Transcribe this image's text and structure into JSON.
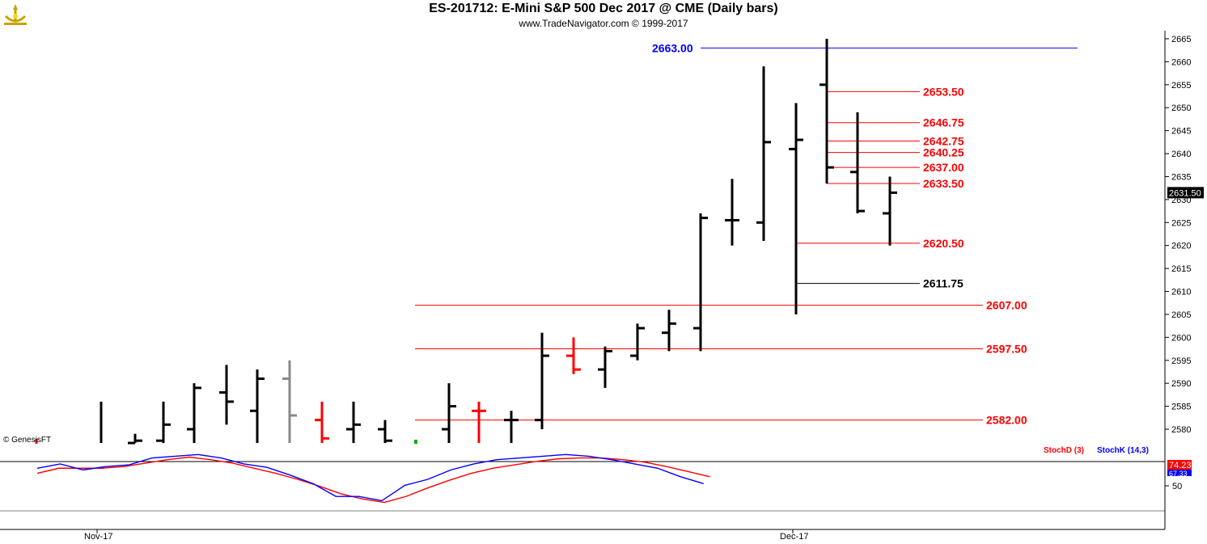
{
  "header": {
    "title": "ES-201712:  E-Mini S&P 500 Dec 2017 @ CME  (Daily bars)",
    "subtitle": "www.TradeNavigator.com © 1999-2017",
    "logo_icon": "ship-wheel-logo-icon"
  },
  "chart_data": [
    {
      "type": "ohlc",
      "instrument": "ES-201712",
      "price_axis": {
        "min": 2578,
        "max": 2666,
        "ticks": [
          2580,
          2585,
          2590,
          2595,
          2600,
          2605,
          2610,
          2615,
          2620,
          2625,
          2630,
          2635,
          2640,
          2645,
          2650,
          2655,
          2660,
          2665
        ]
      },
      "x_labels": [
        "Nov-17",
        "Dec-17"
      ],
      "last_price_label": "2631.50",
      "bars": [
        {
          "o": null,
          "h": 2586,
          "l": 2577,
          "c": null,
          "color": "#000000"
        },
        {
          "o": 2577,
          "h": 2579,
          "l": 2577,
          "c": 2577.5,
          "color": "#000000"
        },
        {
          "o": 2577.5,
          "h": 2586,
          "l": 2577,
          "c": 2581,
          "color": "#000000"
        },
        {
          "o": 2580,
          "h": 2590,
          "l": 2577,
          "c": 2589,
          "color": "#000000"
        },
        {
          "o": 2588,
          "h": 2594,
          "l": 2581,
          "c": 2586,
          "color": "#000000"
        },
        {
          "o": 2584,
          "h": 2593,
          "l": 2577,
          "c": 2591,
          "color": "#000000"
        },
        {
          "o": 2591,
          "h": 2595,
          "l": 2577,
          "c": 2583,
          "color": "#888888"
        },
        {
          "o": 2582,
          "h": 2586,
          "l": 2577,
          "c": 2578,
          "color": "#ff0000"
        },
        {
          "o": 2580,
          "h": 2586,
          "l": 2577,
          "c": 2581,
          "color": "#000000"
        },
        {
          "o": 2580,
          "h": 2582,
          "l": 2577,
          "c": 2577.5,
          "color": "#000000"
        },
        {
          "o": 2580,
          "h": 2590,
          "l": 2577,
          "c": 2585,
          "color": "#000000"
        },
        {
          "o": 2584,
          "h": 2586,
          "l": 2577,
          "c": 2584,
          "color": "#ff0000"
        },
        {
          "o": 2582,
          "h": 2584,
          "l": 2577,
          "c": 2582,
          "color": "#000000"
        },
        {
          "o": 2582,
          "h": 2601,
          "l": 2580,
          "c": 2596,
          "color": "#000000"
        },
        {
          "o": 2596,
          "h": 2600,
          "l": 2592,
          "c": 2593,
          "color": "#ff0000"
        },
        {
          "o": 2593,
          "h": 2598,
          "l": 2589,
          "c": 2597,
          "color": "#000000"
        },
        {
          "o": 2596,
          "h": 2603,
          "l": 2595,
          "c": 2602,
          "color": "#000000"
        },
        {
          "o": 2601,
          "h": 2606,
          "l": 2597,
          "c": 2603,
          "color": "#000000"
        },
        {
          "o": 2602,
          "h": 2627,
          "l": 2597,
          "c": 2626,
          "color": "#000000"
        },
        {
          "o": 2625.5,
          "h": 2634.5,
          "l": 2620,
          "c": 2625.5,
          "color": "#000000"
        },
        {
          "o": 2625,
          "h": 2659,
          "l": 2621,
          "c": 2642.5,
          "color": "#000000"
        },
        {
          "o": 2641,
          "h": 2651,
          "l": 2605,
          "c": 2643,
          "color": "#000000"
        },
        {
          "o": 2655,
          "h": 2665,
          "l": 2633.5,
          "c": 2637,
          "color": "#000000"
        },
        {
          "o": 2636,
          "h": 2649,
          "l": 2627,
          "c": 2627.5,
          "color": "#000000"
        },
        {
          "o": 2627,
          "h": 2635,
          "l": 2620,
          "c": 2631.5,
          "color": "#000000"
        }
      ],
      "levels": [
        {
          "value": 2663.0,
          "label": "2663.00",
          "color": "#0000ff"
        },
        {
          "value": 2653.5,
          "label": "2653.50",
          "color": "#ff0000"
        },
        {
          "value": 2646.75,
          "label": "2646.75",
          "color": "#ff0000"
        },
        {
          "value": 2642.75,
          "label": "2642.75",
          "color": "#ff0000"
        },
        {
          "value": 2640.25,
          "label": "2640.25",
          "color": "#ff0000"
        },
        {
          "value": 2637.0,
          "label": "2637.00",
          "color": "#ff0000"
        },
        {
          "value": 2633.5,
          "label": "2633.50",
          "color": "#ff0000"
        },
        {
          "value": 2620.5,
          "label": "2620.50",
          "color": "#ff0000"
        },
        {
          "value": 2611.75,
          "label": "2611.75",
          "color": "#000000"
        },
        {
          "value": 2607.0,
          "label": "2607.00",
          "color": "#ff0000"
        },
        {
          "value": 2597.5,
          "label": "2597.50",
          "color": "#ff0000"
        },
        {
          "value": 2582.0,
          "label": "2582.00",
          "color": "#ff0000"
        }
      ],
      "copyright": "© GenesisFT"
    },
    {
      "type": "line",
      "indicator": "Stochastic",
      "y_axis": {
        "min": 0,
        "max": 100,
        "ticks": [
          50
        ]
      },
      "series": [
        {
          "name": "StochD (3)",
          "color": "#ff0000",
          "values": [
            72,
            78,
            78,
            78,
            80,
            84,
            88,
            91,
            88,
            84,
            78,
            72,
            65,
            57,
            48,
            42,
            38,
            45,
            55,
            64,
            72,
            78,
            82,
            86,
            89,
            90,
            90,
            88,
            85,
            80,
            74,
            68
          ]
        },
        {
          "name": "StochK (14,3)",
          "color": "#0000ff",
          "values": [
            78,
            83,
            76,
            80,
            82,
            90,
            92,
            94,
            90,
            83,
            79,
            70,
            60,
            45,
            45,
            40,
            58,
            65,
            76,
            83,
            88,
            90,
            92,
            94,
            92,
            88,
            83,
            78,
            68,
            60
          ]
        }
      ],
      "last_values": [
        "74.23",
        "67.33"
      ]
    }
  ],
  "green_marker_color": "#00aa00"
}
